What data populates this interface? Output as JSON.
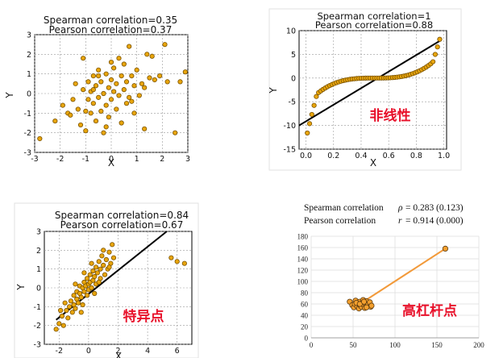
{
  "chart_data": [
    {
      "type": "scatter",
      "title": "Spearman correlation=0.35",
      "subtitle": "Pearson correlation=0.37",
      "xlabel": "X",
      "ylabel": "Y",
      "xlim": [
        -3,
        3
      ],
      "ylim": [
        -3,
        3
      ],
      "x_ticks": [
        -3,
        -2,
        -1,
        0,
        1,
        2,
        3
      ],
      "y_ticks": [
        -3,
        -2,
        -1,
        0,
        1,
        2,
        3
      ],
      "grid": true,
      "point_color": "#e8a50c",
      "points": [
        [
          -2.8,
          -2.3
        ],
        [
          -2.2,
          -1.4
        ],
        [
          -1.9,
          -0.6
        ],
        [
          -1.7,
          -1.0
        ],
        [
          -1.5,
          -0.3
        ],
        [
          -1.4,
          0.5
        ],
        [
          -1.3,
          -0.8
        ],
        [
          -1.2,
          -1.6
        ],
        [
          -1.1,
          0.2
        ],
        [
          -1.1,
          1.8
        ],
        [
          -1.0,
          -1.9
        ],
        [
          -1.0,
          -0.9
        ],
        [
          -0.9,
          0.6
        ],
        [
          -0.9,
          -0.3
        ],
        [
          -0.8,
          -1.0
        ],
        [
          -0.8,
          0.1
        ],
        [
          -0.7,
          0.9
        ],
        [
          -0.7,
          -0.5
        ],
        [
          -0.6,
          -1.4
        ],
        [
          -0.6,
          0.4
        ],
        [
          -0.5,
          1.2
        ],
        [
          -0.5,
          -0.2
        ],
        [
          -0.4,
          0.6
        ],
        [
          -0.4,
          -0.9
        ],
        [
          -0.3,
          -2.0
        ],
        [
          -0.3,
          0.0
        ],
        [
          -0.2,
          1.0
        ],
        [
          -0.2,
          -0.6
        ],
        [
          -0.1,
          0.3
        ],
        [
          -0.1,
          -1.2
        ],
        [
          0.0,
          0.7
        ],
        [
          0.0,
          -0.3
        ],
        [
          0.1,
          1.3
        ],
        [
          0.1,
          0.1
        ],
        [
          0.2,
          -0.8
        ],
        [
          0.2,
          0.5
        ],
        [
          0.3,
          1.8
        ],
        [
          0.3,
          -0.1
        ],
        [
          0.4,
          0.9
        ],
        [
          0.4,
          -1.5
        ],
        [
          0.5,
          0.2
        ],
        [
          0.5,
          1.5
        ],
        [
          0.6,
          -0.5
        ],
        [
          0.6,
          0.6
        ],
        [
          0.7,
          2.4
        ],
        [
          0.7,
          -0.2
        ],
        [
          0.8,
          0.9
        ],
        [
          0.9,
          -1.0
        ],
        [
          0.9,
          0.4
        ],
        [
          1.0,
          1.2
        ],
        [
          1.1,
          -0.1
        ],
        [
          1.2,
          0.5
        ],
        [
          1.3,
          -1.8
        ],
        [
          1.4,
          2.0
        ],
        [
          1.5,
          0.8
        ],
        [
          1.6,
          1.9
        ],
        [
          1.7,
          0.7
        ],
        [
          1.9,
          0.9
        ],
        [
          2.1,
          2.5
        ],
        [
          2.2,
          0.6
        ],
        [
          2.5,
          -2.0
        ],
        [
          2.7,
          0.6
        ],
        [
          2.9,
          1.1
        ],
        [
          -0.5,
          0.9
        ],
        [
          0.0,
          1.6
        ],
        [
          -1.6,
          -1.1
        ],
        [
          -0.2,
          -1.7
        ],
        [
          0.8,
          -0.4
        ],
        [
          1.3,
          0.3
        ],
        [
          -0.7,
          0.2
        ]
      ]
    },
    {
      "type": "scatter",
      "title": "Spearman correlation=1",
      "subtitle": "Pearson correlation=0.88",
      "xlabel": "X",
      "ylabel": "Y",
      "xlim": [
        -0.05,
        1.02
      ],
      "ylim": [
        -15,
        10
      ],
      "x_ticks": [
        0.0,
        0.2,
        0.4,
        0.6,
        0.8,
        1.0
      ],
      "y_ticks": [
        -15,
        -10,
        -5,
        0,
        5,
        10
      ],
      "grid": true,
      "point_color": "#e8a50c",
      "line_color": "#000000",
      "fit_line": [
        [
          -0.05,
          -10.0
        ],
        [
          0.98,
          8.0
        ]
      ],
      "point_rule": "y = 45 * (x - 0.5)^3 with extra drop near x = 0 and rise near x = 1",
      "points_count": 60,
      "annotation": "非线性"
    },
    {
      "type": "scatter",
      "title": "Spearman correlation=0.84",
      "subtitle": "Pearson correlation=0.67",
      "xlabel": "X",
      "ylabel": "Y",
      "xlim": [
        -3,
        7
      ],
      "ylim": [
        -3,
        3
      ],
      "x_ticks": [
        -2,
        0,
        2,
        4,
        6
      ],
      "y_ticks": [
        -3,
        -2,
        -1,
        0,
        1,
        2,
        3
      ],
      "grid": true,
      "point_color": "#e8a50c",
      "line_color": "#000000",
      "fit_line": [
        [
          -2.2,
          -1.7
        ],
        [
          5.3,
          3.0
        ]
      ],
      "points": [
        [
          -2.2,
          -2.2
        ],
        [
          -2.0,
          -1.9
        ],
        [
          -1.8,
          -1.5
        ],
        [
          -1.7,
          -2.0
        ],
        [
          -1.5,
          -1.2
        ],
        [
          -1.4,
          -1.6
        ],
        [
          -1.3,
          -1.0
        ],
        [
          -1.2,
          -0.7
        ],
        [
          -1.1,
          -1.3
        ],
        [
          -1.0,
          -0.9
        ],
        [
          -1.0,
          -0.4
        ],
        [
          -0.9,
          -1.1
        ],
        [
          -0.8,
          -0.6
        ],
        [
          -0.8,
          -0.2
        ],
        [
          -0.7,
          -0.8
        ],
        [
          -0.6,
          -0.3
        ],
        [
          -0.6,
          0.1
        ],
        [
          -0.5,
          -0.5
        ],
        [
          -0.4,
          0.0
        ],
        [
          -0.4,
          -0.9
        ],
        [
          -0.3,
          0.3
        ],
        [
          -0.3,
          -0.2
        ],
        [
          -0.2,
          0.1
        ],
        [
          -0.1,
          -0.4
        ],
        [
          -0.1,
          0.5
        ],
        [
          0.0,
          0.2
        ],
        [
          0.0,
          -0.1
        ],
        [
          0.1,
          0.7
        ],
        [
          0.1,
          0.3
        ],
        [
          0.2,
          0.0
        ],
        [
          0.3,
          0.9
        ],
        [
          0.3,
          0.4
        ],
        [
          0.4,
          0.6
        ],
        [
          0.5,
          1.1
        ],
        [
          0.5,
          0.2
        ],
        [
          0.6,
          0.8
        ],
        [
          0.7,
          1.4
        ],
        [
          0.8,
          0.5
        ],
        [
          0.8,
          1.0
        ],
        [
          0.9,
          1.7
        ],
        [
          1.0,
          1.2
        ],
        [
          1.1,
          0.7
        ],
        [
          1.2,
          1.5
        ],
        [
          1.3,
          1.0
        ],
        [
          1.4,
          1.9
        ],
        [
          1.5,
          1.3
        ],
        [
          1.6,
          2.3
        ],
        [
          1.7,
          1.6
        ],
        [
          -1.6,
          -0.8
        ],
        [
          -0.9,
          0.2
        ],
        [
          0.2,
          1.3
        ],
        [
          1.0,
          2.0
        ],
        [
          -0.5,
          -1.3
        ],
        [
          0.4,
          -0.3
        ],
        [
          -1.9,
          -1.2
        ],
        [
          1.4,
          1.1
        ],
        [
          -0.3,
          0.8
        ],
        [
          0.7,
          0.3
        ],
        [
          5.6,
          1.6
        ],
        [
          6.0,
          1.4
        ],
        [
          6.5,
          1.3
        ]
      ],
      "annotation": "特异点"
    },
    {
      "type": "scatter",
      "line1_label": "Spearman correlation",
      "line1_symbol": "ρ",
      "line1_value": "= 0.283",
      "line1_p": "(0.123)",
      "line2_label": "Pearson correlation",
      "line2_symbol": "r",
      "line2_value": "= 0.914",
      "line2_p": "(0.000)",
      "xlim": [
        0,
        200
      ],
      "ylim": [
        0,
        180
      ],
      "x_ticks": [
        0,
        50,
        100,
        150,
        200
      ],
      "y_ticks": [
        0,
        20,
        40,
        60,
        80,
        100,
        120,
        140,
        160,
        180
      ],
      "grid": true,
      "point_color": "#f4a02e",
      "line_color": "#f29a3a",
      "leverage_point": [
        160,
        158
      ],
      "fit_line": [
        [
          55,
          57
        ],
        [
          160,
          158
        ]
      ],
      "points": [
        [
          46,
          64
        ],
        [
          49,
          58
        ],
        [
          51,
          54
        ],
        [
          52,
          60
        ],
        [
          53,
          66
        ],
        [
          55,
          56
        ],
        [
          56,
          61
        ],
        [
          57,
          52
        ],
        [
          58,
          64
        ],
        [
          59,
          57
        ],
        [
          60,
          55
        ],
        [
          61,
          62
        ],
        [
          62,
          67
        ],
        [
          63,
          58
        ],
        [
          64,
          53
        ],
        [
          65,
          61
        ],
        [
          66,
          65
        ],
        [
          67,
          56
        ],
        [
          68,
          59
        ],
        [
          70,
          63
        ],
        [
          71,
          55
        ],
        [
          72,
          57
        ],
        [
          54,
          62
        ],
        [
          58,
          60
        ],
        [
          63,
          64
        ],
        [
          66,
          54
        ]
      ],
      "annotation": "高杠杆点"
    }
  ]
}
